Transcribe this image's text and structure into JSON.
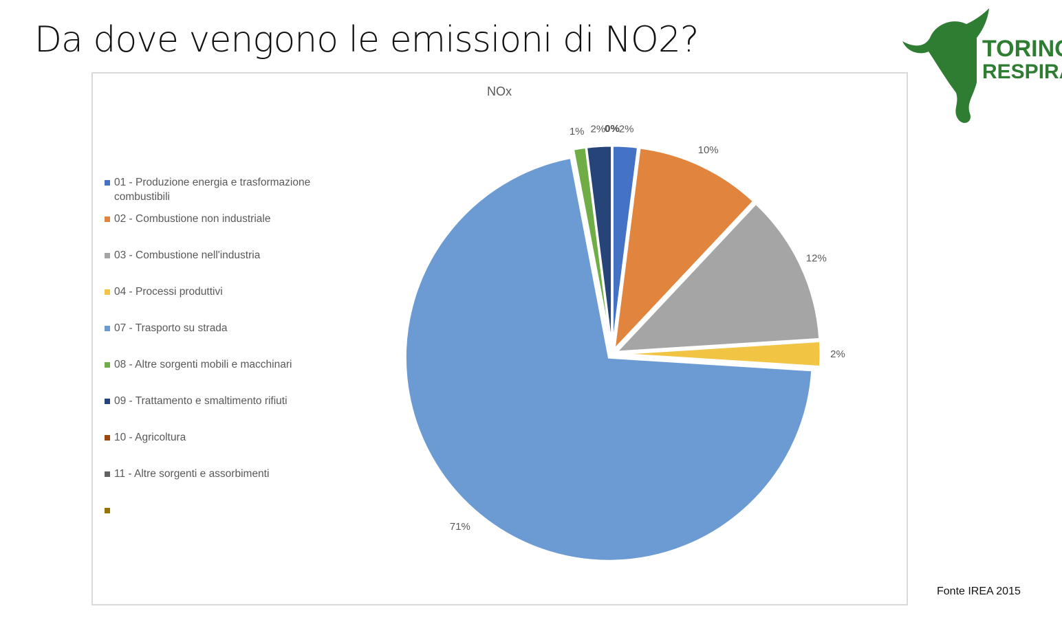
{
  "title": "Da dove vengono le emissioni di NO2?",
  "logo": [
    "TORINO",
    "RESPIRA"
  ],
  "source": "Fonte IREA 2015",
  "chart_data": {
    "type": "pie",
    "title": "NOx",
    "categories": [
      "01 - Produzione energia e trasformazione combustibili",
      "02 - Combustione non industriale",
      "03 - Combustione nell'industria",
      "04 - Processi produttivi",
      "07 - Trasporto su strada",
      "08 - Altre sorgenti mobili e macchinari",
      "09 - Trattamento e smaltimento rifiuti",
      "10 - Agricoltura",
      "11 - Altre sorgenti e assorbimenti",
      null
    ],
    "values": [
      2,
      10,
      12,
      2,
      71,
      1,
      2,
      0,
      0,
      0
    ],
    "value_labels": [
      "2%",
      "10%",
      "12%",
      "2%",
      "71%",
      "1%",
      "2%",
      "0%",
      "0%",
      "0%"
    ],
    "colors": [
      "#4472c4",
      "#e0843e",
      "#a5a5a5",
      "#f2c443",
      "#6b9bd2",
      "#70ad47",
      "#264478",
      "#9e480e",
      "#636363",
      "#997300"
    ],
    "legend": "left"
  }
}
